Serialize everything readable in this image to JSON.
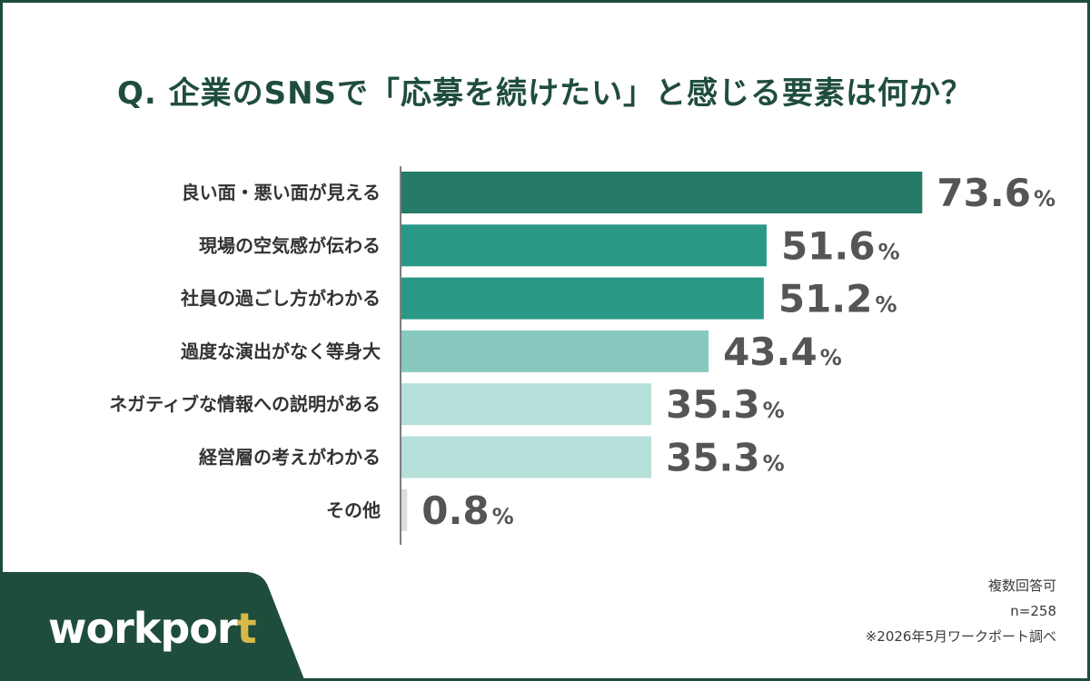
{
  "title": "Q. 企業のSNSで「応募を続けたい」と感じる要素は何か？",
  "chart_data": {
    "type": "bar",
    "orientation": "horizontal",
    "title": "Q. 企業のSNSで「応募を続けたい」と感じる要素は何か？",
    "categories": [
      "良い面・悪い面が見える",
      "現場の空気感が伝わる",
      "社員の過ごし方がわかる",
      "過度な演出がなく等身大",
      "ネガティブな情報への説明がある",
      "経営層の考えがわかる",
      "その他"
    ],
    "values": [
      73.6,
      51.6,
      51.2,
      43.4,
      35.3,
      35.3,
      0.8
    ],
    "value_labels": [
      "73.6",
      "51.6",
      "51.2",
      "43.4",
      "35.3",
      "35.3",
      "0.8"
    ],
    "unit": "%",
    "bar_colors": [
      "#257a68",
      "#2a9886",
      "#2a9886",
      "#88c9bf",
      "#b6e0da",
      "#b6e0da",
      "#dddddd"
    ],
    "xlim": [
      0,
      100
    ],
    "grid": false
  },
  "notes": {
    "multiple": "複数回答可",
    "sample": "n=258",
    "source": "※2026年5月ワークポート調べ"
  },
  "logo": {
    "text_main": "workpor",
    "text_accent": "t",
    "band_color": "#1f4d3c",
    "accent_color": "#d7b94a"
  }
}
